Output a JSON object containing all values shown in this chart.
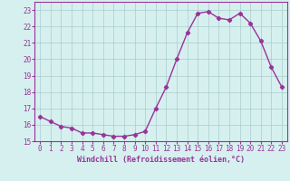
{
  "x": [
    0,
    1,
    2,
    3,
    4,
    5,
    6,
    7,
    8,
    9,
    10,
    11,
    12,
    13,
    14,
    15,
    16,
    17,
    18,
    19,
    20,
    21,
    22,
    23
  ],
  "y": [
    16.5,
    16.2,
    15.9,
    15.8,
    15.5,
    15.5,
    15.4,
    15.3,
    15.3,
    15.4,
    15.6,
    17.0,
    18.3,
    20.0,
    21.6,
    22.8,
    22.9,
    22.5,
    22.4,
    22.8,
    22.2,
    21.1,
    19.5,
    18.3
  ],
  "line_color": "#993399",
  "marker": "D",
  "marker_size": 2.2,
  "bg_color": "#d6f0ef",
  "grid_color": "#aacccc",
  "xlabel": "Windchill (Refroidissement éolien,°C)",
  "ylim": [
    15,
    23.5
  ],
  "xlim": [
    -0.5,
    23.5
  ],
  "yticks": [
    15,
    16,
    17,
    18,
    19,
    20,
    21,
    22,
    23
  ],
  "xticks": [
    0,
    1,
    2,
    3,
    4,
    5,
    6,
    7,
    8,
    9,
    10,
    11,
    12,
    13,
    14,
    15,
    16,
    17,
    18,
    19,
    20,
    21,
    22,
    23
  ],
  "tick_color": "#993399",
  "label_fontsize": 6.0,
  "tick_fontsize": 5.5,
  "line_width": 1.0
}
